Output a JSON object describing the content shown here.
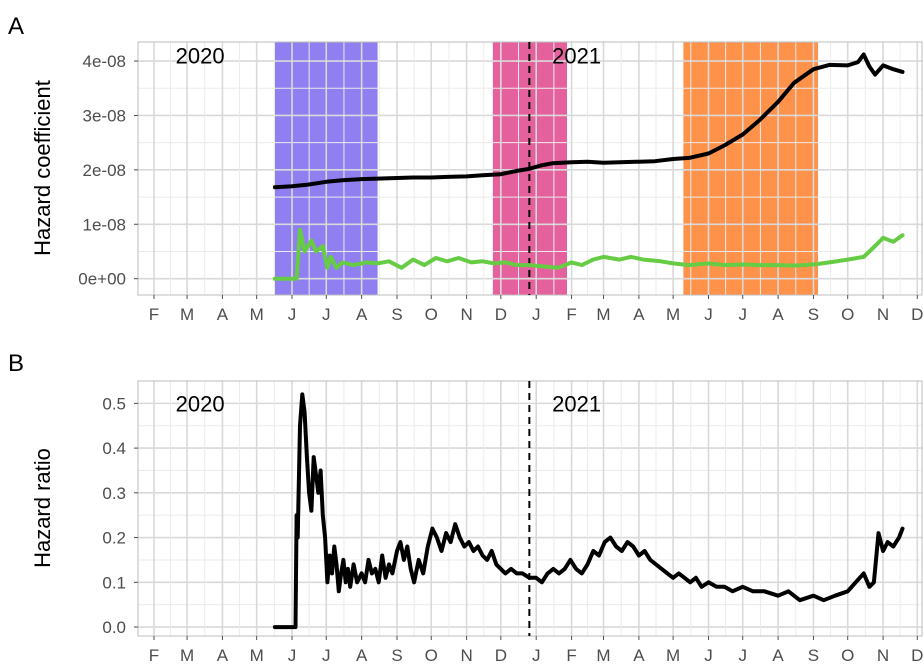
{
  "chart_data": [
    {
      "panel": "A",
      "type": "line",
      "title": "",
      "xlabel": "",
      "ylabel": "Hazard coefficient",
      "x_tick_labels": [
        "F",
        "M",
        "A",
        "M",
        "J",
        "J",
        "A",
        "S",
        "O",
        "N",
        "D",
        "J",
        "F",
        "M",
        "A",
        "M",
        "J",
        "J",
        "A",
        "S",
        "O",
        "N",
        "D"
      ],
      "y_ticks": [
        0,
        1e-08,
        2e-08,
        3e-08,
        4e-08
      ],
      "y_tick_labels": [
        "0e+00",
        "1e-08",
        "2e-08",
        "3e-08",
        "4e-08"
      ],
      "ylim": [
        -3e-09,
        4.35e-08
      ],
      "grid": true,
      "annotations": [
        {
          "text": "2020",
          "x": "2020-02-20",
          "y": 4.1e-08
        },
        {
          "text": "2021",
          "x": "2021-01-15",
          "y": 4.1e-08
        }
      ],
      "vline": {
        "x": "2020-12-26",
        "style": "dashed"
      },
      "shaded_periods": [
        {
          "start": "2020-05-17",
          "end": "2020-08-15",
          "color": "#7b68ee"
        },
        {
          "start": "2020-11-24",
          "end": "2021-01-28",
          "color": "#e0458c"
        },
        {
          "start": "2021-05-10",
          "end": "2021-09-05",
          "color": "#ff7f2a"
        }
      ],
      "series": [
        {
          "color": "#000000",
          "x": [
            "2020-05-17",
            "2020-06-01",
            "2020-06-15",
            "2020-07-01",
            "2020-07-15",
            "2020-08-01",
            "2020-08-15",
            "2020-09-01",
            "2020-09-15",
            "2020-10-01",
            "2020-10-15",
            "2020-11-01",
            "2020-11-15",
            "2020-12-01",
            "2020-12-15",
            "2020-12-26",
            "2021-01-05",
            "2021-01-15",
            "2021-02-01",
            "2021-02-15",
            "2021-03-01",
            "2021-03-15",
            "2021-04-01",
            "2021-04-15",
            "2021-05-01",
            "2021-05-15",
            "2021-06-01",
            "2021-06-15",
            "2021-07-01",
            "2021-07-15",
            "2021-08-01",
            "2021-08-15",
            "2021-09-01",
            "2021-09-15",
            "2021-10-01",
            "2021-10-10",
            "2021-10-15",
            "2021-10-20",
            "2021-10-25",
            "2021-11-01",
            "2021-11-10",
            "2021-11-18"
          ],
          "y": [
            1.68e-08,
            1.7e-08,
            1.73e-08,
            1.78e-08,
            1.81e-08,
            1.83e-08,
            1.84e-08,
            1.85e-08,
            1.86e-08,
            1.86e-08,
            1.87e-08,
            1.88e-08,
            1.9e-08,
            1.92e-08,
            1.98e-08,
            2.02e-08,
            2.08e-08,
            2.12e-08,
            2.14e-08,
            2.15e-08,
            2.13e-08,
            2.14e-08,
            2.15e-08,
            2.16e-08,
            2.2e-08,
            2.22e-08,
            2.3e-08,
            2.45e-08,
            2.65e-08,
            2.9e-08,
            3.25e-08,
            3.6e-08,
            3.85e-08,
            3.93e-08,
            3.92e-08,
            3.98e-08,
            4.12e-08,
            3.9e-08,
            3.75e-08,
            3.92e-08,
            3.85e-08,
            3.8e-08
          ]
        },
        {
          "color": "#66cc44",
          "x": [
            "2020-05-17",
            "2020-06-05",
            "2020-06-08",
            "2020-06-12",
            "2020-06-18",
            "2020-06-22",
            "2020-06-28",
            "2020-07-02",
            "2020-07-05",
            "2020-07-10",
            "2020-07-15",
            "2020-07-25",
            "2020-08-05",
            "2020-08-15",
            "2020-08-25",
            "2020-09-05",
            "2020-09-15",
            "2020-09-25",
            "2020-10-05",
            "2020-10-15",
            "2020-10-25",
            "2020-11-05",
            "2020-11-15",
            "2020-11-25",
            "2020-12-05",
            "2020-12-15",
            "2020-12-26",
            "2021-01-10",
            "2021-01-20",
            "2021-02-01",
            "2021-02-10",
            "2021-02-20",
            "2021-03-01",
            "2021-03-15",
            "2021-03-25",
            "2021-04-05",
            "2021-04-20",
            "2021-05-01",
            "2021-05-15",
            "2021-06-01",
            "2021-06-15",
            "2021-07-01",
            "2021-07-15",
            "2021-08-01",
            "2021-08-15",
            "2021-09-01",
            "2021-09-15",
            "2021-10-01",
            "2021-10-15",
            "2021-10-25",
            "2021-11-01",
            "2021-11-10",
            "2021-11-18"
          ],
          "y": [
            0,
            0,
            9e-09,
            5e-09,
            7e-09,
            5e-09,
            6e-09,
            2e-09,
            4e-09,
            2e-09,
            3e-09,
            2.5e-09,
            3e-09,
            2.8e-09,
            3.2e-09,
            2e-09,
            3.5e-09,
            2.5e-09,
            3.8e-09,
            3.2e-09,
            3.8e-09,
            3e-09,
            3.2e-09,
            2.8e-09,
            3e-09,
            2.5e-09,
            2.5e-09,
            2.2e-09,
            2e-09,
            3e-09,
            2.5e-09,
            3.5e-09,
            4e-09,
            3.5e-09,
            4e-09,
            3.5e-09,
            3.2e-09,
            2.8e-09,
            2.5e-09,
            2.8e-09,
            2.5e-09,
            2.6e-09,
            2.5e-09,
            2.5e-09,
            2.4e-09,
            2.6e-09,
            3e-09,
            3.5e-09,
            4e-09,
            6e-09,
            7.5e-09,
            6.8e-09,
            8e-09
          ]
        }
      ]
    },
    {
      "panel": "B",
      "type": "line",
      "title": "",
      "xlabel": "",
      "ylabel": "Hazard ratio",
      "x_tick_labels": [
        "F",
        "M",
        "A",
        "M",
        "J",
        "J",
        "A",
        "S",
        "O",
        "N",
        "D",
        "J",
        "F",
        "M",
        "A",
        "M",
        "J",
        "J",
        "A",
        "S",
        "O",
        "N",
        "D"
      ],
      "y_ticks": [
        0,
        0.1,
        0.2,
        0.3,
        0.4,
        0.5
      ],
      "y_tick_labels": [
        "0.0",
        "0.1",
        "0.2",
        "0.3",
        "0.4",
        "0.5"
      ],
      "ylim": [
        -0.02,
        0.55
      ],
      "grid": true,
      "annotations": [
        {
          "text": "2020",
          "x": "2020-02-20",
          "y": 0.5
        },
        {
          "text": "2021",
          "x": "2021-01-15",
          "y": 0.5
        }
      ],
      "vline": {
        "x": "2020-12-26",
        "style": "dashed"
      },
      "series": [
        {
          "color": "#000000",
          "x": [
            "2020-05-17",
            "2020-06-04",
            "2020-06-05",
            "2020-06-06",
            "2020-06-08",
            "2020-06-10",
            "2020-06-12",
            "2020-06-14",
            "2020-06-16",
            "2020-06-18",
            "2020-06-20",
            "2020-06-22",
            "2020-06-24",
            "2020-06-26",
            "2020-06-28",
            "2020-06-30",
            "2020-07-02",
            "2020-07-04",
            "2020-07-06",
            "2020-07-08",
            "2020-07-10",
            "2020-07-12",
            "2020-07-14",
            "2020-07-16",
            "2020-07-18",
            "2020-07-20",
            "2020-07-22",
            "2020-07-25",
            "2020-07-28",
            "2020-08-01",
            "2020-08-04",
            "2020-08-07",
            "2020-08-10",
            "2020-08-13",
            "2020-08-16",
            "2020-08-19",
            "2020-08-22",
            "2020-08-25",
            "2020-08-28",
            "2020-09-01",
            "2020-09-04",
            "2020-09-07",
            "2020-09-10",
            "2020-09-13",
            "2020-09-16",
            "2020-09-20",
            "2020-09-24",
            "2020-09-28",
            "2020-10-02",
            "2020-10-06",
            "2020-10-10",
            "2020-10-14",
            "2020-10-18",
            "2020-10-22",
            "2020-10-26",
            "2020-10-30",
            "2020-11-03",
            "2020-11-07",
            "2020-11-11",
            "2020-11-15",
            "2020-11-19",
            "2020-11-23",
            "2020-11-27",
            "2020-12-01",
            "2020-12-05",
            "2020-12-10",
            "2020-12-15",
            "2020-12-20",
            "2020-12-26",
            "2021-01-01",
            "2021-01-06",
            "2021-01-11",
            "2021-01-16",
            "2021-01-21",
            "2021-01-26",
            "2021-01-31",
            "2021-02-05",
            "2021-02-10",
            "2021-02-15",
            "2021-02-20",
            "2021-02-25",
            "2021-03-02",
            "2021-03-07",
            "2021-03-12",
            "2021-03-17",
            "2021-03-22",
            "2021-03-27",
            "2021-04-01",
            "2021-04-06",
            "2021-04-11",
            "2021-04-16",
            "2021-04-21",
            "2021-04-26",
            "2021-05-01",
            "2021-05-06",
            "2021-05-11",
            "2021-05-16",
            "2021-05-21",
            "2021-05-26",
            "2021-06-01",
            "2021-06-08",
            "2021-06-15",
            "2021-06-22",
            "2021-07-01",
            "2021-07-10",
            "2021-07-20",
            "2021-08-01",
            "2021-08-10",
            "2021-08-20",
            "2021-09-01",
            "2021-09-10",
            "2021-09-20",
            "2021-10-01",
            "2021-10-08",
            "2021-10-15",
            "2021-10-20",
            "2021-10-24",
            "2021-10-28",
            "2021-11-01",
            "2021-11-05",
            "2021-11-10",
            "2021-11-15",
            "2021-11-18"
          ],
          "y": [
            0,
            0,
            0.25,
            0.2,
            0.45,
            0.52,
            0.48,
            0.38,
            0.3,
            0.26,
            0.38,
            0.34,
            0.3,
            0.35,
            0.25,
            0.2,
            0.1,
            0.16,
            0.12,
            0.18,
            0.14,
            0.08,
            0.12,
            0.15,
            0.1,
            0.13,
            0.09,
            0.14,
            0.1,
            0.12,
            0.1,
            0.15,
            0.12,
            0.13,
            0.1,
            0.16,
            0.11,
            0.14,
            0.12,
            0.17,
            0.19,
            0.15,
            0.18,
            0.13,
            0.1,
            0.15,
            0.12,
            0.18,
            0.22,
            0.2,
            0.17,
            0.21,
            0.19,
            0.23,
            0.2,
            0.18,
            0.19,
            0.17,
            0.18,
            0.16,
            0.15,
            0.17,
            0.14,
            0.13,
            0.12,
            0.13,
            0.12,
            0.12,
            0.11,
            0.11,
            0.1,
            0.12,
            0.13,
            0.12,
            0.13,
            0.15,
            0.13,
            0.12,
            0.14,
            0.17,
            0.16,
            0.19,
            0.2,
            0.18,
            0.17,
            0.19,
            0.18,
            0.16,
            0.17,
            0.15,
            0.14,
            0.13,
            0.12,
            0.11,
            0.12,
            0.11,
            0.1,
            0.11,
            0.09,
            0.1,
            0.09,
            0.09,
            0.08,
            0.09,
            0.08,
            0.08,
            0.07,
            0.08,
            0.06,
            0.07,
            0.06,
            0.07,
            0.08,
            0.1,
            0.12,
            0.09,
            0.1,
            0.21,
            0.17,
            0.19,
            0.18,
            0.2,
            0.22
          ]
        }
      ]
    }
  ]
}
